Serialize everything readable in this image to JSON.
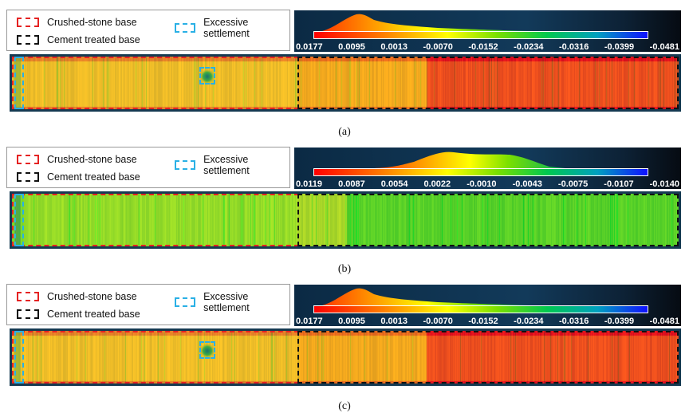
{
  "legend": {
    "crushed_stone": "Crushed-stone base",
    "excessive_settlement": "Excessive settlement",
    "cement_treated": "Cement treated base"
  },
  "panels": [
    {
      "caption": "(a)",
      "ticks": [
        "0.0177",
        "0.0095",
        "0.0013",
        "-0.0070",
        "-0.0152",
        "-0.0234",
        "-0.0316",
        "-0.0399",
        "-0.0481"
      ],
      "settlement_marker": true,
      "variant": "warm"
    },
    {
      "caption": "(b)",
      "ticks": [
        "0.0119",
        "0.0087",
        "0.0054",
        "0.0022",
        "-0.0010",
        "-0.0043",
        "-0.0075",
        "-0.0107",
        "-0.0140"
      ],
      "settlement_marker": false,
      "variant": "green"
    },
    {
      "caption": "(c)",
      "ticks": [
        "0.0177",
        "0.0095",
        "0.0013",
        "-0.0070",
        "-0.0152",
        "-0.0234",
        "-0.0316",
        "-0.0399",
        "-0.0481"
      ],
      "settlement_marker": true,
      "variant": "warm"
    }
  ],
  "colors": {
    "crushed_stone": "#e52222",
    "excessive_settlement": "#2ab0e5",
    "cement_treated": "#111111"
  }
}
